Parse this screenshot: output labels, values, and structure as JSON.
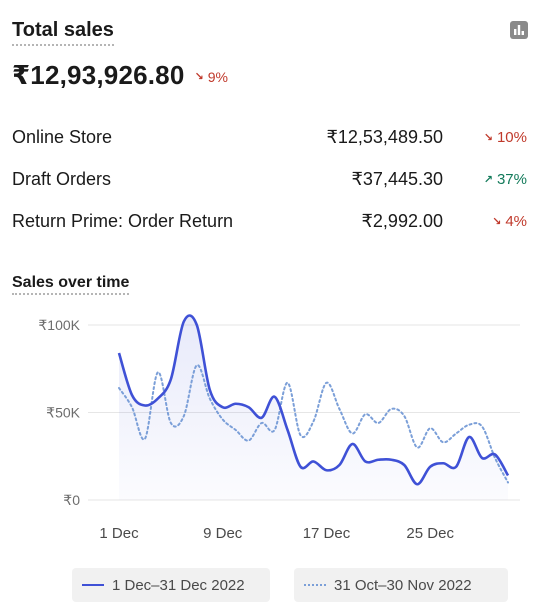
{
  "header": {
    "title": "Total sales",
    "total": "₹12,93,926.80",
    "total_change": {
      "direction": "down",
      "value": "9%"
    }
  },
  "breakdown": [
    {
      "label": "Online Store",
      "value": "₹12,53,489.50",
      "change": {
        "direction": "down",
        "value": "10%"
      }
    },
    {
      "label": "Draft Orders",
      "value": "₹37,445.30",
      "change": {
        "direction": "up",
        "value": "37%"
      }
    },
    {
      "label": "Return Prime: Order Return",
      "value": "₹2,992.00",
      "change": {
        "direction": "down",
        "value": "4%"
      }
    }
  ],
  "sales_over_time": {
    "title": "Sales over time"
  },
  "colors": {
    "current": "#3f51d6",
    "previous": "#7b9fd8",
    "down": "#c0392b",
    "up": "#127a5a"
  },
  "chart_data": {
    "type": "line",
    "ylim": [
      0,
      100000
    ],
    "yticks": [
      {
        "value": 0,
        "label": "₹0"
      },
      {
        "value": 50000,
        "label": "₹50K"
      },
      {
        "value": 100000,
        "label": "₹100K"
      }
    ],
    "xticks": [
      {
        "index": 0,
        "label": "1 Dec"
      },
      {
        "index": 8,
        "label": "9 Dec"
      },
      {
        "index": 16,
        "label": "17 Dec"
      },
      {
        "index": 24,
        "label": "25 Dec"
      }
    ],
    "series": [
      {
        "name": "1 Dec–31 Dec 2022",
        "style": "solid",
        "values": [
          84000,
          60000,
          54000,
          58000,
          69000,
          102000,
          100000,
          63000,
          53000,
          55000,
          53000,
          47000,
          59000,
          40000,
          19000,
          22000,
          17000,
          20000,
          32000,
          22000,
          23000,
          23000,
          20000,
          9000,
          19000,
          21000,
          19000,
          36000,
          24000,
          26000,
          14000
        ]
      },
      {
        "name": "31 Oct–30 Nov 2022",
        "style": "dotted",
        "values": [
          64000,
          53000,
          35000,
          73000,
          44000,
          48000,
          77000,
          58000,
          46000,
          40000,
          34000,
          44000,
          40000,
          67000,
          37000,
          45000,
          67000,
          52000,
          38000,
          49000,
          44000,
          52000,
          48000,
          30000,
          41000,
          33000,
          38000,
          43000,
          42000,
          24000,
          10000
        ]
      }
    ]
  }
}
